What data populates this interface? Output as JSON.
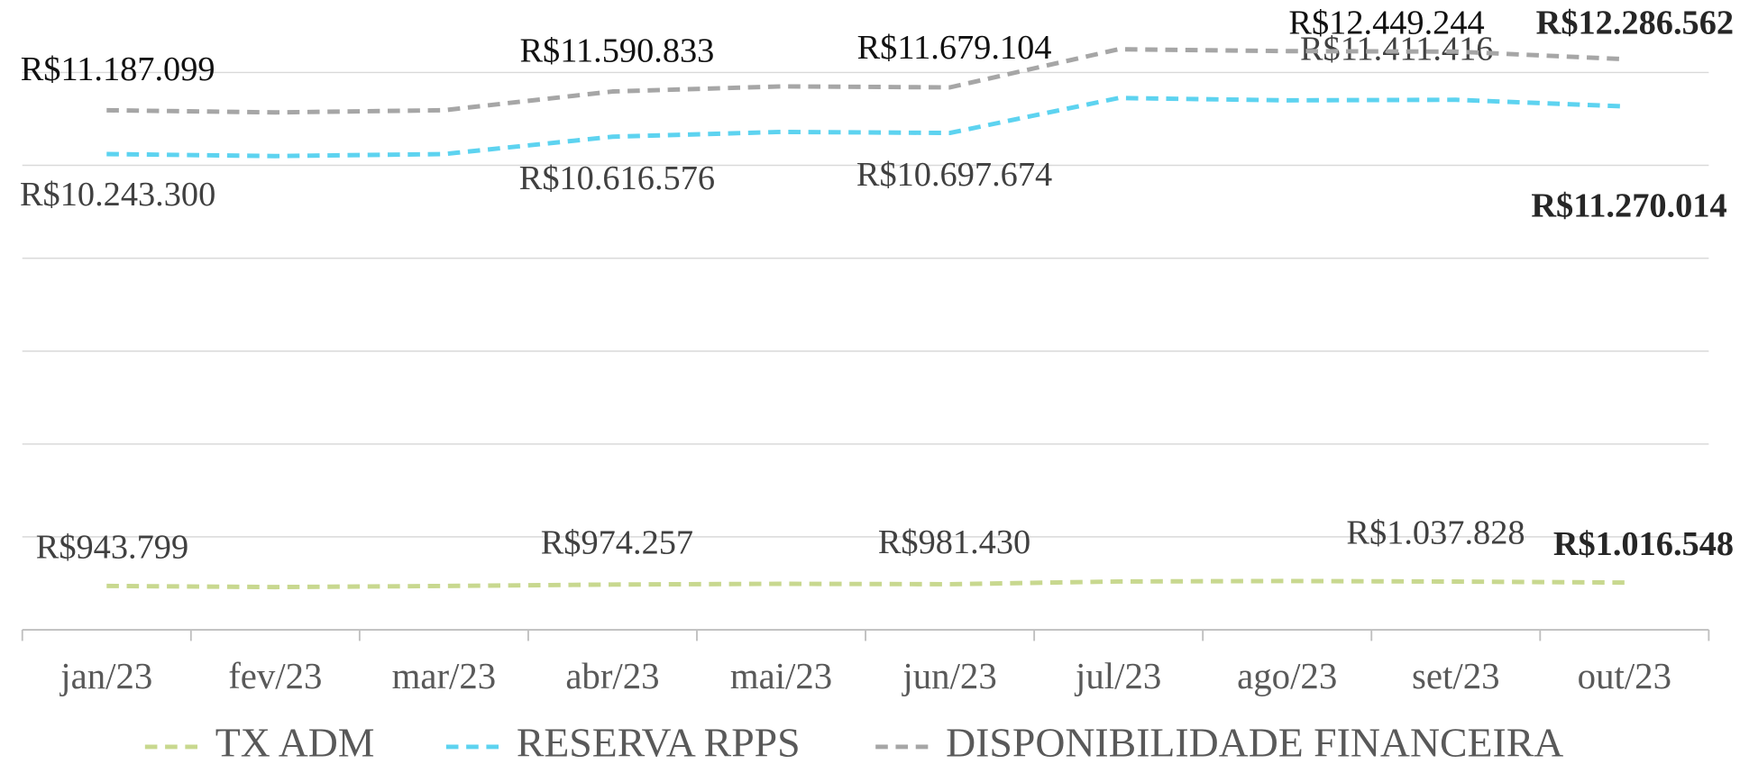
{
  "chart_data": {
    "type": "line",
    "categories": [
      "jan/23",
      "fev/23",
      "mar/23",
      "abr/23",
      "mai/23",
      "jun/23",
      "jul/23",
      "ago/23",
      "set/23",
      "out/23"
    ],
    "series": [
      {
        "name": "TX ADM",
        "color": "#c8d88f",
        "values": [
          943799,
          920000,
          943000,
          974257,
          990000,
          981430,
          1040000,
          1050000,
          1037828,
          1016548
        ],
        "value_labels": [
          "R$943.799",
          null,
          null,
          "R$974.257",
          null,
          "R$981.430",
          null,
          null,
          "R$1.037.828",
          "R$1.016.548"
        ]
      },
      {
        "name": "RESERVA RPPS",
        "color": "#5dd3f0",
        "values": [
          10243300,
          10200000,
          10243000,
          10616576,
          10720000,
          10697674,
          11450000,
          11400000,
          11411416,
          11270014
        ],
        "value_labels": [
          "R$10.243.300",
          null,
          null,
          "R$10.616.576",
          null,
          "R$10.697.674",
          null,
          null,
          "R$11.411.416",
          "R$11.270.014"
        ]
      },
      {
        "name": "DISPONIBILIDADE FINANCEIRA",
        "color": "#a6a6a6",
        "values": [
          11187099,
          11140000,
          11187000,
          11590833,
          11700000,
          11679104,
          12500000,
          12460000,
          12449244,
          12286562
        ],
        "value_labels": [
          "R$11.187.099",
          null,
          null,
          "R$11.590.833",
          null,
          "R$11.679.104",
          null,
          null,
          "R$12.449.244",
          "R$12.286.562"
        ]
      }
    ],
    "ylim": [
      0,
      12000000
    ],
    "yticks": [
      0,
      2000000,
      4000000,
      6000000,
      8000000,
      10000000,
      12000000
    ],
    "grid": true,
    "legend": "bottom"
  }
}
